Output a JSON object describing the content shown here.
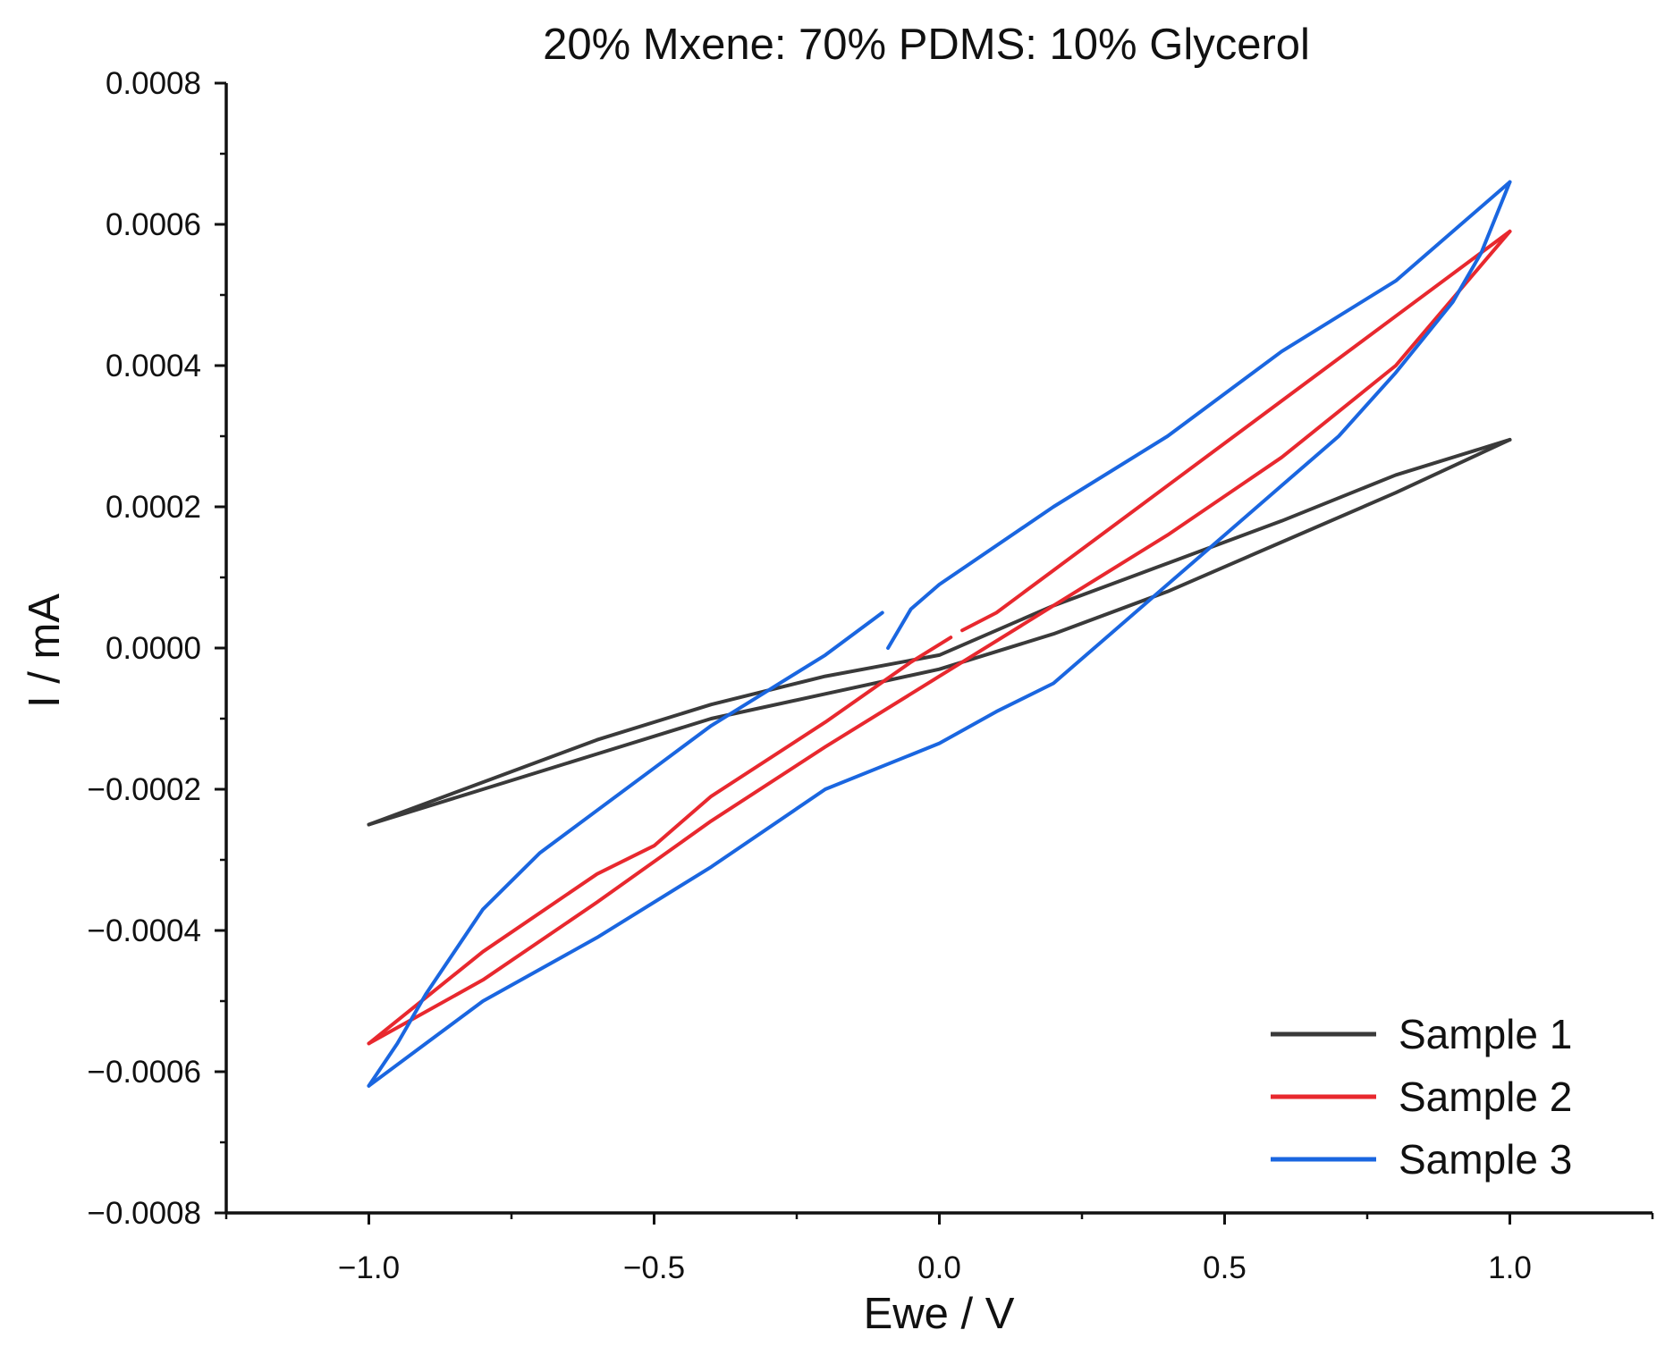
{
  "chart_data": {
    "type": "line",
    "title": "20% Mxene: 70% PDMS: 10% Glycerol",
    "xlabel": "Ewe / V",
    "ylabel": "I / mA",
    "xlim": [
      -1.25,
      1.25
    ],
    "ylim": [
      -0.0008,
      0.0008
    ],
    "x_ticks": [
      -1.0,
      -0.5,
      0.0,
      0.5,
      1.0
    ],
    "x_tick_labels": [
      "−1.0",
      "−0.5",
      "0.0",
      "0.5",
      "1.0"
    ],
    "y_ticks": [
      -0.0008,
      -0.0006,
      -0.0004,
      -0.0002,
      0.0,
      0.0002,
      0.0004,
      0.0006,
      0.0008
    ],
    "y_tick_labels": [
      "−0.0008",
      "−0.0006",
      "−0.0004",
      "−0.0002",
      "0.0000",
      "0.0002",
      "0.0004",
      "0.0006",
      "0.0008"
    ],
    "grid": false,
    "legend_position": "bottom-right",
    "series": [
      {
        "name": "Sample 1",
        "color": "#3a3a3a",
        "segments": [
          [
            [
              -1.0,
              -0.00025
            ],
            [
              -0.8,
              -0.00019
            ],
            [
              -0.6,
              -0.00013
            ],
            [
              -0.4,
              -8e-05
            ],
            [
              -0.2,
              -4e-05
            ],
            [
              0.0,
              -1e-05
            ],
            [
              0.2,
              6e-05
            ],
            [
              0.4,
              0.00012
            ],
            [
              0.6,
              0.00018
            ],
            [
              0.8,
              0.000245
            ],
            [
              1.0,
              0.000295
            ]
          ],
          [
            [
              1.0,
              0.000295
            ],
            [
              0.8,
              0.00022
            ],
            [
              0.6,
              0.00015
            ],
            [
              0.4,
              8e-05
            ],
            [
              0.2,
              2e-05
            ],
            [
              0.0,
              -3e-05
            ],
            [
              -0.2,
              -6.5e-05
            ],
            [
              -0.4,
              -0.0001
            ],
            [
              -0.6,
              -0.00015
            ],
            [
              -0.8,
              -0.0002
            ],
            [
              -1.0,
              -0.00025
            ]
          ]
        ]
      },
      {
        "name": "Sample 2",
        "color": "#e8282e",
        "segments": [
          [
            [
              0.04,
              2.5e-05
            ],
            [
              0.1,
              5e-05
            ],
            [
              0.2,
              0.00011
            ],
            [
              0.4,
              0.00023
            ],
            [
              0.6,
              0.00035
            ],
            [
              0.8,
              0.00047
            ],
            [
              1.0,
              0.00059
            ]
          ],
          [
            [
              1.0,
              0.00059
            ],
            [
              0.8,
              0.0004
            ],
            [
              0.6,
              0.00027
            ],
            [
              0.4,
              0.00016
            ],
            [
              0.2,
              6e-05
            ],
            [
              0.0,
              -4e-05
            ],
            [
              -0.2,
              -0.00014
            ],
            [
              -0.4,
              -0.000245
            ],
            [
              -0.6,
              -0.00036
            ],
            [
              -0.8,
              -0.00047
            ],
            [
              -1.0,
              -0.00056
            ]
          ],
          [
            [
              -1.0,
              -0.00056
            ],
            [
              -0.8,
              -0.00043
            ],
            [
              -0.6,
              -0.00032
            ],
            [
              -0.5,
              -0.00028
            ],
            [
              -0.4,
              -0.00021
            ],
            [
              -0.2,
              -0.000105
            ],
            [
              -0.05,
              -2e-05
            ],
            [
              0.02,
              1.5e-05
            ]
          ]
        ]
      },
      {
        "name": "Sample 3",
        "color": "#1a66e0",
        "segments": [
          [
            [
              -0.09,
              0.0
            ],
            [
              -0.05,
              5.5e-05
            ],
            [
              0.0,
              9e-05
            ],
            [
              0.2,
              0.0002
            ],
            [
              0.4,
              0.0003
            ],
            [
              0.6,
              0.00042
            ],
            [
              0.8,
              0.00052
            ],
            [
              1.0,
              0.00066
            ]
          ],
          [
            [
              1.0,
              0.00066
            ],
            [
              0.95,
              0.00056
            ],
            [
              0.9,
              0.00049
            ],
            [
              0.8,
              0.00039
            ],
            [
              0.7,
              0.0003
            ],
            [
              0.6,
              0.00023
            ],
            [
              0.5,
              0.00016
            ],
            [
              0.4,
              9e-05
            ],
            [
              0.3,
              2e-05
            ],
            [
              0.2,
              -5e-05
            ],
            [
              0.1,
              -9e-05
            ],
            [
              0.0,
              -0.000135
            ],
            [
              -0.2,
              -0.0002
            ],
            [
              -0.4,
              -0.00031
            ],
            [
              -0.6,
              -0.00041
            ],
            [
              -0.8,
              -0.0005
            ],
            [
              -0.9,
              -0.00056
            ],
            [
              -1.0,
              -0.00062
            ]
          ],
          [
            [
              -1.0,
              -0.00062
            ],
            [
              -0.95,
              -0.00056
            ],
            [
              -0.9,
              -0.00049
            ],
            [
              -0.8,
              -0.00037
            ],
            [
              -0.7,
              -0.00029
            ],
            [
              -0.6,
              -0.00023
            ],
            [
              -0.5,
              -0.00017
            ],
            [
              -0.4,
              -0.00011
            ],
            [
              -0.3,
              -6e-05
            ],
            [
              -0.2,
              -1e-05
            ],
            [
              -0.1,
              5e-05
            ]
          ]
        ]
      }
    ]
  }
}
